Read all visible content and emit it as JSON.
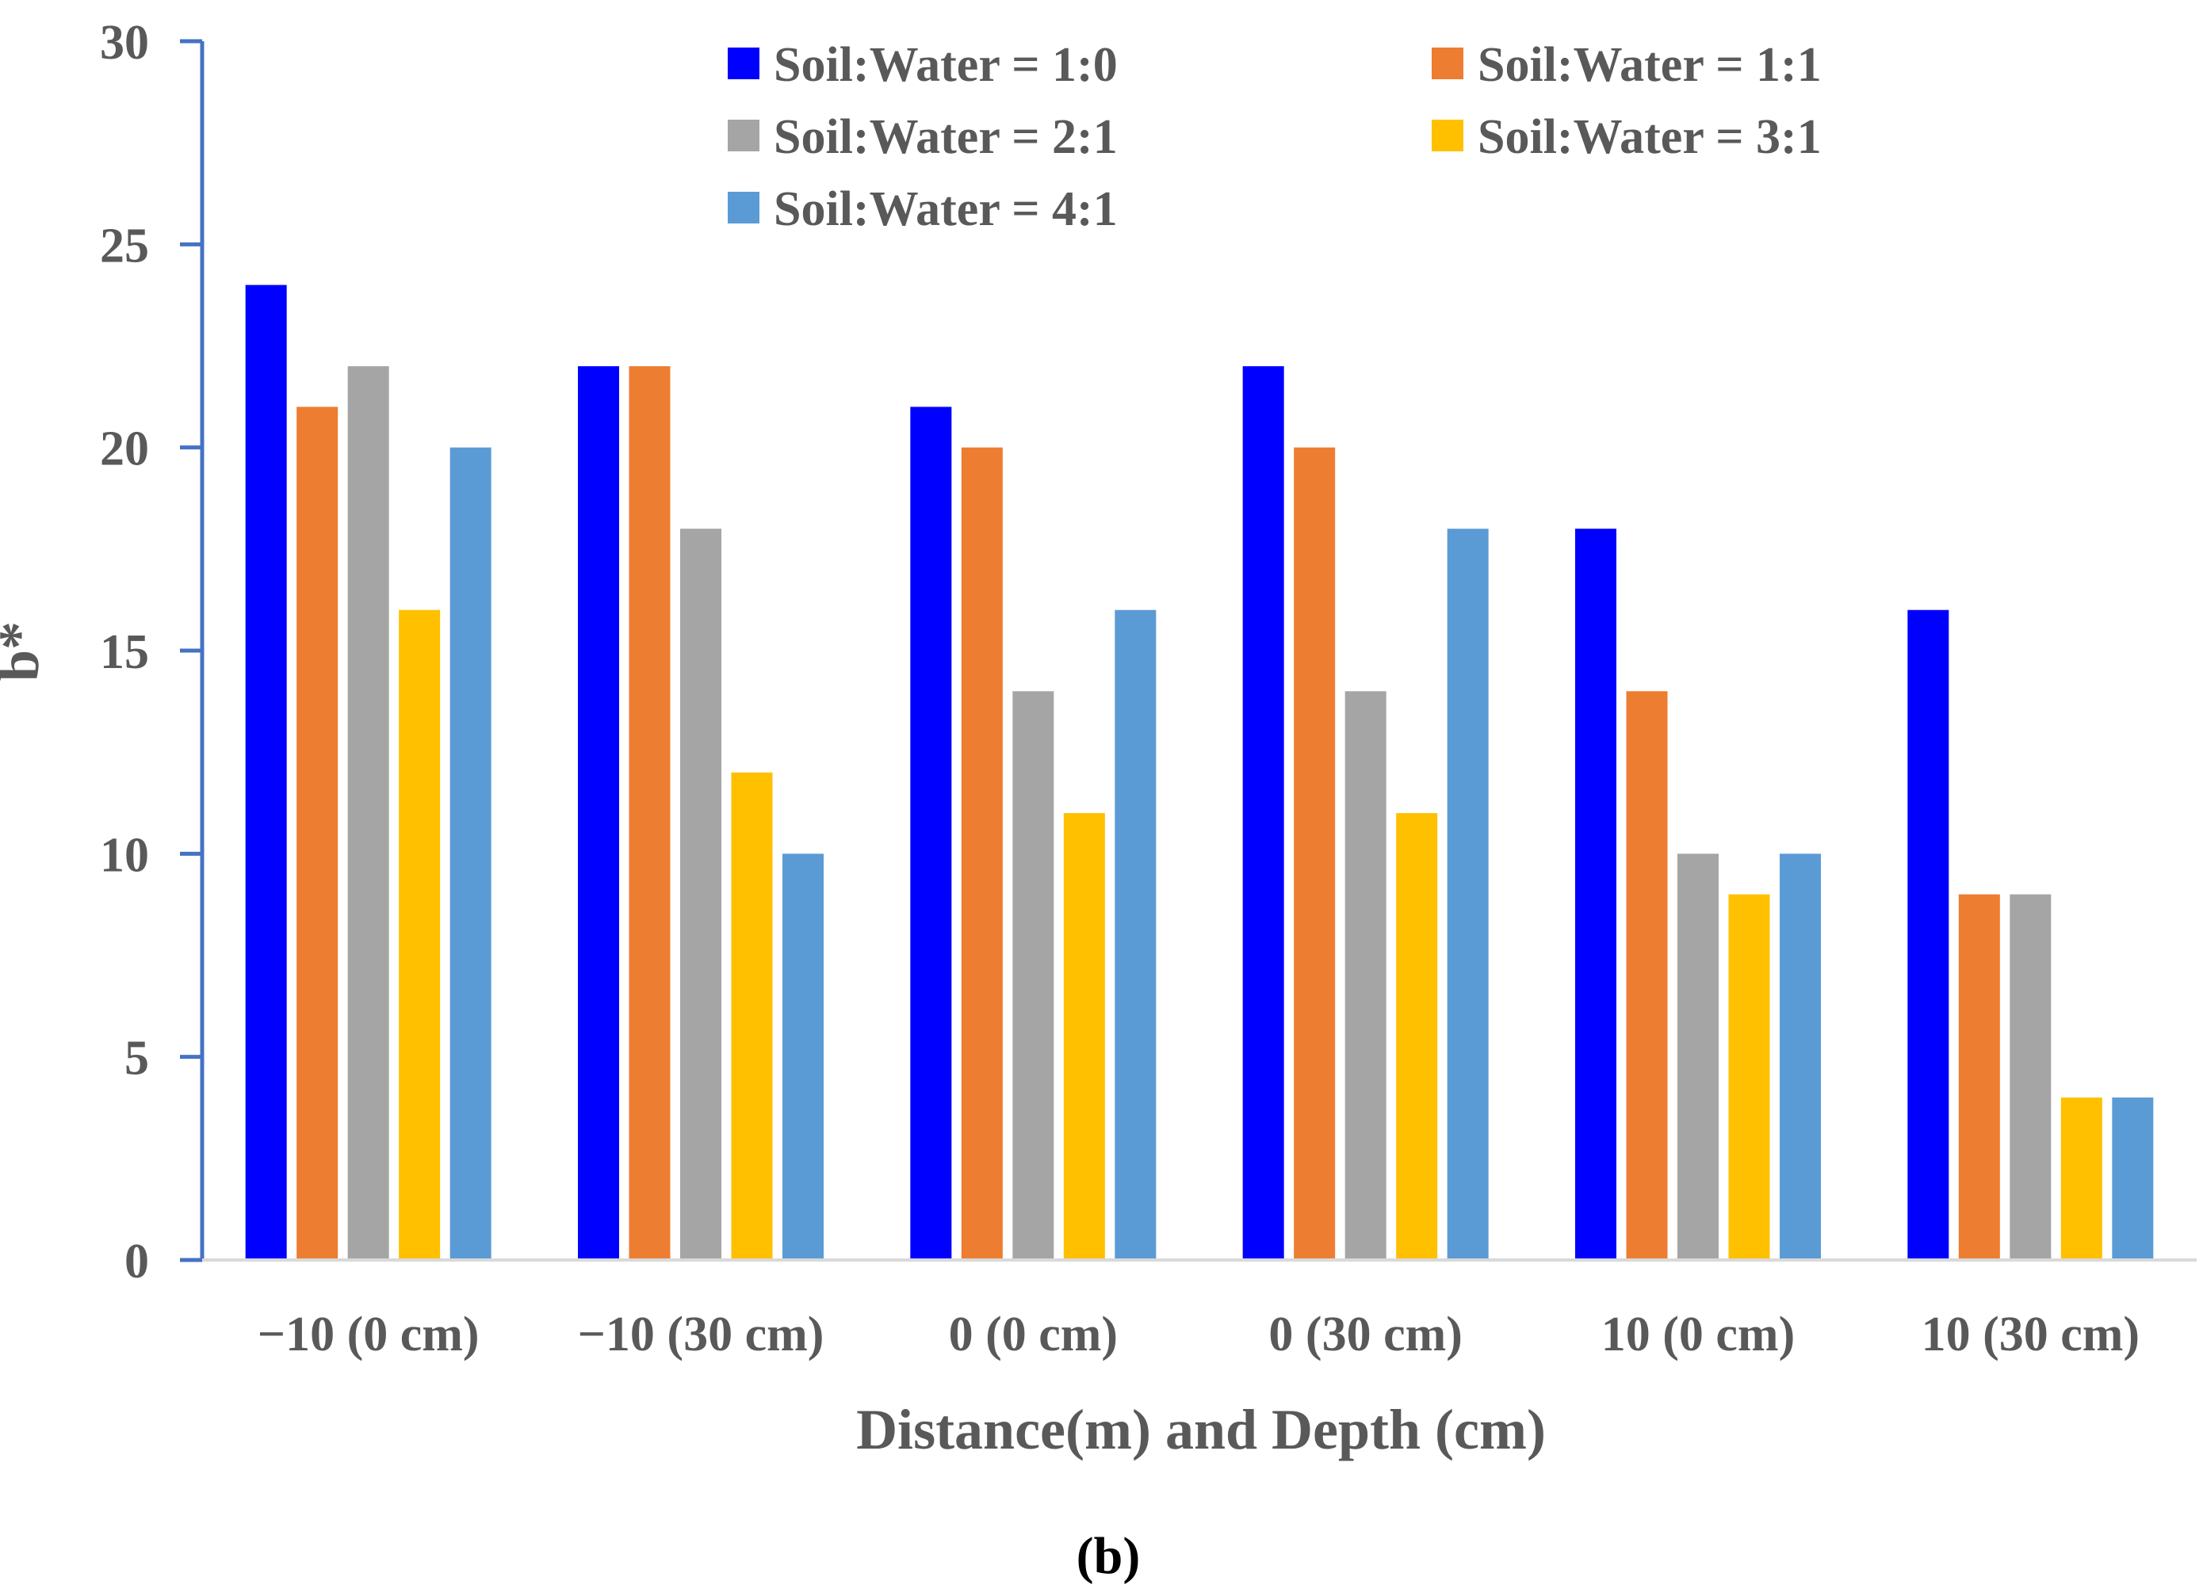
{
  "chart_data": {
    "type": "bar",
    "title": "",
    "panel_label": "(b)",
    "xlabel": "Distance(m) and Depth (cm)",
    "ylabel": "b*",
    "ylim": [
      0,
      30
    ],
    "yticks": [
      0,
      5,
      10,
      15,
      20,
      25,
      30
    ],
    "grid": false,
    "legend_position": "top-right",
    "categories": [
      "−10 (0 cm)",
      "−10 (30 cm)",
      "0 (0 cm)",
      "0 (30 cm)",
      "10 (0 cm)",
      "10 (30 cm)"
    ],
    "series": [
      {
        "name": "Soil:Water = 1:0",
        "color": "#0000FF",
        "values": [
          24,
          22,
          21,
          22,
          18,
          16
        ]
      },
      {
        "name": "Soil:Water = 1:1",
        "color": "#ED7D31",
        "values": [
          21,
          22,
          20,
          20,
          14,
          9
        ]
      },
      {
        "name": "Soil:Water = 2:1",
        "color": "#A5A5A5",
        "values": [
          22,
          18,
          14,
          14,
          10,
          9
        ]
      },
      {
        "name": "Soil:Water = 3:1",
        "color": "#FFC000",
        "values": [
          16,
          12,
          11,
          11,
          9,
          4
        ]
      },
      {
        "name": "Soil:Water = 4:1",
        "color": "#5B9BD5",
        "values": [
          20,
          10,
          16,
          18,
          10,
          4
        ]
      }
    ],
    "axis_color": "#4472C4"
  }
}
